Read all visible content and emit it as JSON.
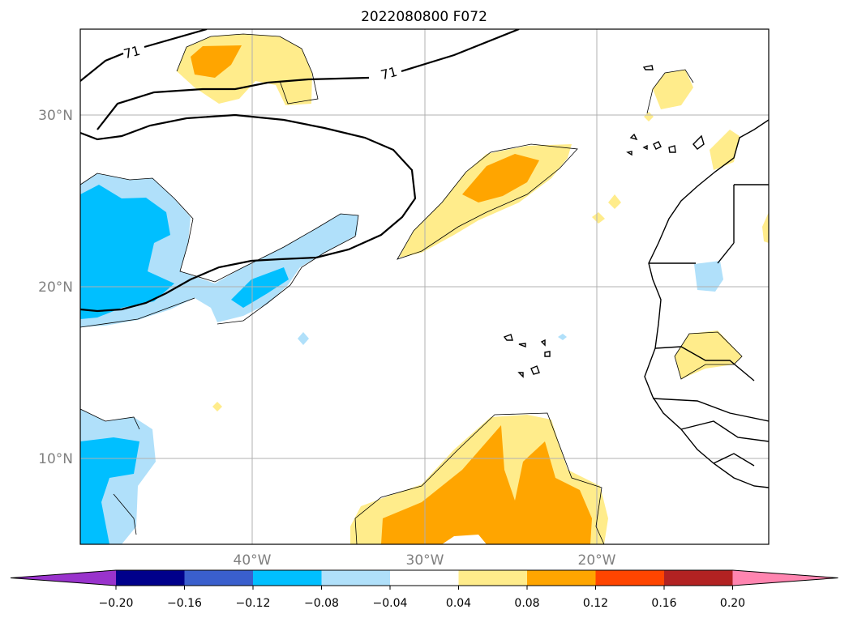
{
  "title": "2022080800 F072",
  "map": {
    "lon_range": [
      -50,
      -10
    ],
    "lat_range": [
      5,
      35
    ],
    "lat_ticks": [
      {
        "value": 30,
        "label": "30°N"
      },
      {
        "value": 20,
        "label": "20°N"
      },
      {
        "value": 10,
        "label": "10°N"
      }
    ],
    "lon_ticks": [
      {
        "value": -40,
        "label": "40°W"
      },
      {
        "value": -30,
        "label": "30°W"
      },
      {
        "value": -20,
        "label": "20°W"
      }
    ],
    "grid": true,
    "contour_value_label": "71"
  },
  "colorbar": {
    "boundaries": [
      "−0.20",
      "−0.16",
      "−0.12",
      "−0.08",
      "−0.04",
      "0.04",
      "0.08",
      "0.12",
      "0.16",
      "0.20"
    ],
    "colors": [
      "#9933cc",
      "#00008b",
      "#3a5fcd",
      "#00bfff",
      "#b0e0fa",
      "#ffffff",
      "#ffec8b",
      "#ffa500",
      "#ff4500",
      "#b22222",
      "#ff85b0"
    ],
    "extend": "both"
  },
  "colors": {
    "yellow": "#ffec8b",
    "orange": "#ffa500",
    "lightblue": "#b0e0fa",
    "blue": "#00bfff",
    "grid": "#b0b0b0"
  }
}
